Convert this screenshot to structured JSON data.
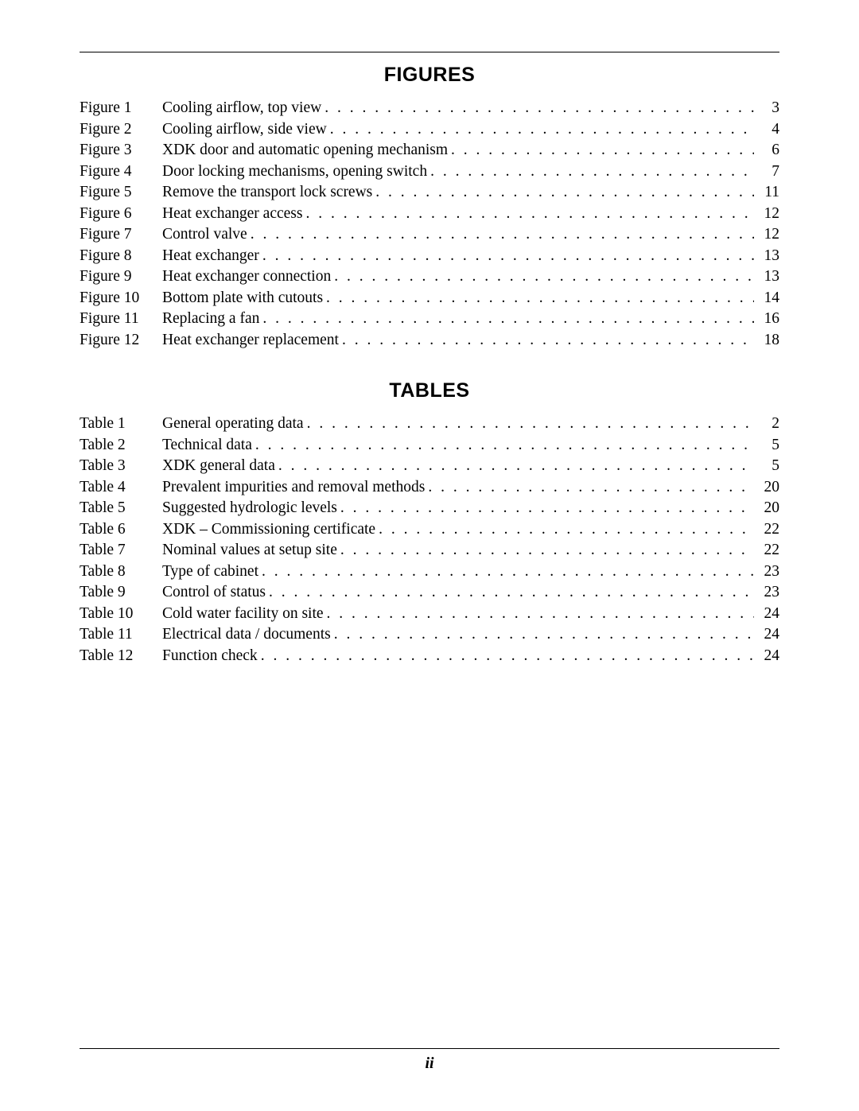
{
  "page_number": "ii",
  "sections": [
    {
      "heading": "FIGURES",
      "label_prefix": "Figure",
      "entries": [
        {
          "n": "1",
          "title": "Cooling airflow, top view",
          "page": "3"
        },
        {
          "n": "2",
          "title": "Cooling airflow, side view",
          "page": "4"
        },
        {
          "n": "3",
          "title": "XDK door and automatic opening mechanism",
          "page": "6"
        },
        {
          "n": "4",
          "title": "Door locking mechanisms, opening switch",
          "page": "7"
        },
        {
          "n": "5",
          "title": "Remove the transport lock screws",
          "page": "11"
        },
        {
          "n": "6",
          "title": "Heat exchanger access",
          "page": "12"
        },
        {
          "n": "7",
          "title": "Control valve",
          "page": "12"
        },
        {
          "n": "8",
          "title": "Heat exchanger",
          "page": "13"
        },
        {
          "n": "9",
          "title": "Heat exchanger connection",
          "page": "13"
        },
        {
          "n": "10",
          "title": "Bottom plate with cutouts",
          "page": "14"
        },
        {
          "n": "11",
          "title": "Replacing a fan",
          "page": "16"
        },
        {
          "n": "12",
          "title": "Heat exchanger replacement",
          "page": "18"
        }
      ]
    },
    {
      "heading": "TABLES",
      "label_prefix": "Table",
      "entries": [
        {
          "n": "1",
          "title": "General operating data",
          "page": "2"
        },
        {
          "n": "2",
          "title": "Technical data",
          "page": "5"
        },
        {
          "n": "3",
          "title": "XDK general data",
          "page": "5"
        },
        {
          "n": "4",
          "title": "Prevalent impurities and removal methods",
          "page": "20"
        },
        {
          "n": "5",
          "title": "Suggested hydrologic levels",
          "page": "20"
        },
        {
          "n": "6",
          "title": "XDK – Commissioning certificate",
          "page": "22"
        },
        {
          "n": "7",
          "title": "Nominal values at setup site",
          "page": "22"
        },
        {
          "n": "8",
          "title": "Type of cabinet",
          "page": "23"
        },
        {
          "n": "9",
          "title": "Control of status",
          "page": "23"
        },
        {
          "n": "10",
          "title": "Cold water facility on site",
          "page": "24"
        },
        {
          "n": "11",
          "title": "Electrical data / documents",
          "page": "24"
        },
        {
          "n": "12",
          "title": "Function check",
          "page": "24"
        }
      ]
    }
  ]
}
